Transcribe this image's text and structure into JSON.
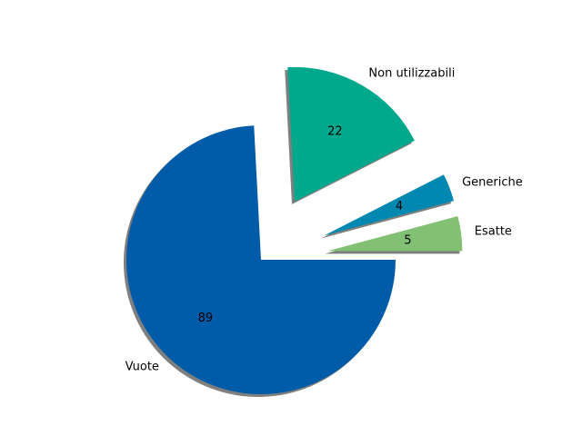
{
  "chart_data": {
    "type": "pie",
    "title": "",
    "slices": [
      {
        "label": "Esatte",
        "value": 5,
        "color": "#82c074",
        "explode": true
      },
      {
        "label": "Generiche",
        "value": 4,
        "color": "#0088b0",
        "explode": true
      },
      {
        "label": "Non utilizzabili",
        "value": 22,
        "color": "#00a88c",
        "explode": true
      },
      {
        "label": "Vuote",
        "value": 89,
        "color": "#005ca8",
        "explode": false
      }
    ],
    "start_angle_deg": 0,
    "direction": "counterclockwise",
    "shadow": true,
    "show_values": true,
    "legend": "none"
  }
}
